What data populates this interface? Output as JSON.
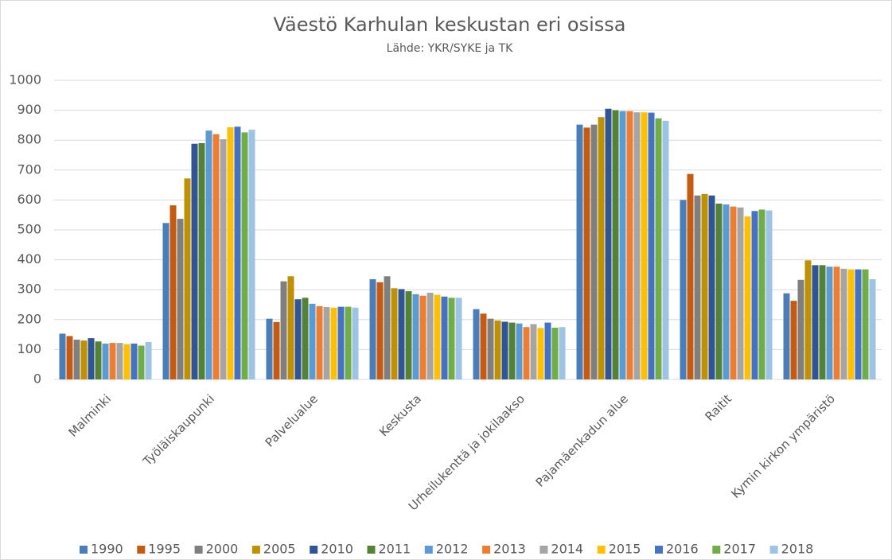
{
  "chart_data": {
    "type": "bar",
    "title": "Väestö Karhulan keskustan eri osissa",
    "subtitle": "Lähde: YKR/SYKE ja TK",
    "categories": [
      "Malminki",
      "Työläiskaupunki",
      "Palvelualue",
      "Keskusta",
      "Urheilukenttä ja jokilaakso",
      "Pajamäenkadun alue",
      "Raitit",
      "Kymin kirkon ympäristö"
    ],
    "ylim": [
      0,
      1000
    ],
    "yticks": [
      0,
      100,
      200,
      300,
      400,
      500,
      600,
      700,
      800,
      900,
      1000
    ],
    "grid": true,
    "legend": "bottom",
    "series": [
      {
        "name": "1990",
        "color": "#4a7ebb",
        "values": [
          153,
          523,
          203,
          335,
          235,
          852,
          600,
          288
        ]
      },
      {
        "name": "1995",
        "color": "#c55a11",
        "values": [
          145,
          582,
          192,
          325,
          220,
          842,
          687,
          263
        ]
      },
      {
        "name": "2000",
        "color": "#7f7f7f",
        "values": [
          133,
          537,
          328,
          345,
          203,
          852,
          615,
          333
        ]
      },
      {
        "name": "2005",
        "color": "#bf9000",
        "values": [
          130,
          672,
          345,
          305,
          197,
          877,
          620,
          398
        ]
      },
      {
        "name": "2010",
        "color": "#2f5597",
        "values": [
          138,
          788,
          268,
          302,
          193,
          905,
          615,
          382
        ]
      },
      {
        "name": "2011",
        "color": "#548235",
        "values": [
          127,
          790,
          273,
          295,
          190,
          900,
          588,
          382
        ]
      },
      {
        "name": "2012",
        "color": "#5b9bd5",
        "values": [
          120,
          832,
          253,
          285,
          187,
          897,
          585,
          377
        ]
      },
      {
        "name": "2013",
        "color": "#ed7d31",
        "values": [
          122,
          820,
          245,
          280,
          175,
          897,
          578,
          377
        ]
      },
      {
        "name": "2014",
        "color": "#a5a5a5",
        "values": [
          122,
          803,
          242,
          290,
          185,
          893,
          575,
          370
        ]
      },
      {
        "name": "2015",
        "color": "#ffc000",
        "values": [
          118,
          843,
          240,
          283,
          172,
          893,
          545,
          368
        ]
      },
      {
        "name": "2016",
        "color": "#4472c4",
        "values": [
          120,
          845,
          243,
          277,
          190,
          892,
          563,
          368
        ]
      },
      {
        "name": "2017",
        "color": "#70ad47",
        "values": [
          113,
          826,
          243,
          273,
          173,
          873,
          568,
          368
        ]
      },
      {
        "name": "2018",
        "color": "#9dc3e6",
        "values": [
          125,
          835,
          240,
          273,
          175,
          865,
          565,
          335
        ]
      }
    ]
  }
}
